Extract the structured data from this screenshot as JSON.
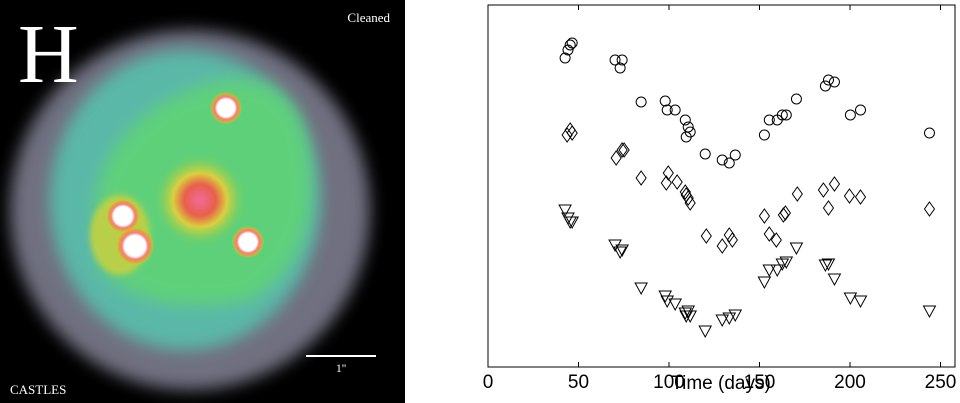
{
  "image": {
    "band": "H",
    "status": "Cleaned",
    "credit": "CASTLES",
    "scale": "1''"
  },
  "chart_data": {
    "type": "scatter",
    "xlabel": "Time (days)",
    "xlim": [
      0,
      258
    ],
    "xticks": [
      0,
      50,
      100,
      150,
      200,
      250
    ],
    "ylim": [
      0,
      362
    ],
    "series": [
      {
        "marker": "circle",
        "color": "#000000",
        "x": [
          42.6,
          44.2,
          45.4,
          46.5,
          70.2,
          73,
          74.1,
          84.6,
          97.9,
          99,
          103.4,
          109,
          109.5,
          110.6,
          111.7,
          120,
          129.4,
          133.3,
          136.6,
          152.7,
          155.4,
          159.8,
          162.6,
          164.8,
          170.4,
          186.4,
          188.1,
          191.4,
          200.2,
          205.8,
          243.9
        ],
        "values": [
          309,
          317,
          322,
          324,
          307,
          299,
          307,
          265,
          266,
          257,
          257,
          247,
          230,
          240,
          235,
          213,
          207,
          204,
          212,
          232,
          247,
          247,
          252,
          252,
          268,
          281,
          287,
          285,
          252,
          257,
          234
        ]
      },
      {
        "marker": "diamond",
        "color": "#000000",
        "x": [
          43.7,
          45.4,
          46.5,
          70.8,
          74.1,
          75.2,
          84.6,
          98.5,
          99.6,
          104.5,
          109,
          109.5,
          110.6,
          111.7,
          120.6,
          129.4,
          133.3,
          135,
          152.7,
          155.4,
          159.3,
          163.2,
          164.3,
          170.9,
          185.3,
          188.1,
          191.4,
          199.7,
          205.8,
          243.9
        ],
        "values": [
          232,
          237,
          234,
          209,
          217,
          217,
          189,
          184,
          194,
          185,
          175,
          172,
          169,
          164,
          131,
          121,
          132,
          127,
          151,
          133,
          127,
          152,
          154,
          173,
          177,
          159,
          183,
          171,
          170,
          158
        ]
      },
      {
        "marker": "triangle-down",
        "color": "#000000",
        "x": [
          42.6,
          44.2,
          45.4,
          46.5,
          70.2,
          73,
          74.1,
          84.6,
          97.9,
          99,
          103.4,
          109,
          109.5,
          110.6,
          111.7,
          120,
          129.4,
          133.3,
          136.6,
          152.7,
          155.4,
          159.8,
          162.6,
          164.8,
          170.4,
          186.4,
          188.1,
          191.4,
          200.2,
          205.8,
          243.9
        ],
        "values": [
          157,
          149,
          145,
          145,
          122,
          115,
          117,
          79,
          71,
          66,
          63,
          54,
          51,
          56,
          51,
          36,
          47,
          49,
          52,
          85,
          97,
          97,
          103,
          105,
          119,
          102,
          103,
          88,
          69,
          66,
          56
        ]
      }
    ]
  }
}
